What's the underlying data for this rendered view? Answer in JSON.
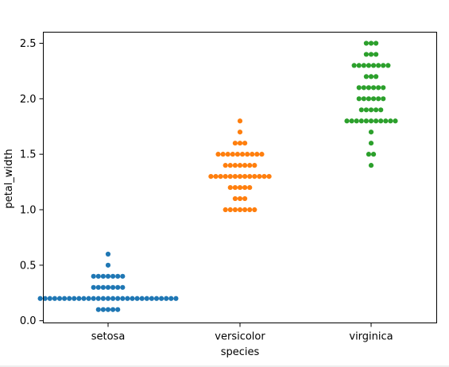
{
  "chart_data": {
    "type": "scatter",
    "subtype": "swarm",
    "title": "",
    "xlabel": "species",
    "ylabel": "petal_width",
    "ylim": [
      -0.02,
      2.6
    ],
    "yticks": [
      0.0,
      0.5,
      1.0,
      1.5,
      2.0,
      2.5
    ],
    "ytick_labels": [
      "0.0",
      "0.5",
      "1.0",
      "1.5",
      "2.0",
      "2.5"
    ],
    "grid": false,
    "legend": "none",
    "categories": [
      "setosa",
      "versicolor",
      "virginica"
    ],
    "colors": [
      "#1f77b4",
      "#ff7f0e",
      "#2ca02c"
    ],
    "series": [
      {
        "values": [
          0.1,
          0.1,
          0.1,
          0.1,
          0.1,
          0.2,
          0.2,
          0.2,
          0.2,
          0.2,
          0.2,
          0.2,
          0.2,
          0.2,
          0.2,
          0.2,
          0.2,
          0.2,
          0.2,
          0.2,
          0.2,
          0.2,
          0.2,
          0.2,
          0.2,
          0.2,
          0.2,
          0.2,
          0.2,
          0.2,
          0.2,
          0.2,
          0.2,
          0.2,
          0.3,
          0.3,
          0.3,
          0.3,
          0.3,
          0.3,
          0.3,
          0.4,
          0.4,
          0.4,
          0.4,
          0.4,
          0.4,
          0.4,
          0.5,
          0.6
        ]
      },
      {
        "values": [
          1.0,
          1.0,
          1.0,
          1.0,
          1.0,
          1.0,
          1.0,
          1.1,
          1.1,
          1.1,
          1.2,
          1.2,
          1.2,
          1.2,
          1.2,
          1.3,
          1.3,
          1.3,
          1.3,
          1.3,
          1.3,
          1.3,
          1.3,
          1.3,
          1.3,
          1.3,
          1.3,
          1.3,
          1.4,
          1.4,
          1.4,
          1.4,
          1.4,
          1.4,
          1.4,
          1.5,
          1.5,
          1.5,
          1.5,
          1.5,
          1.5,
          1.5,
          1.5,
          1.5,
          1.5,
          1.6,
          1.6,
          1.6,
          1.7,
          1.8
        ]
      },
      {
        "values": [
          1.4,
          1.5,
          1.5,
          1.6,
          1.7,
          1.8,
          1.8,
          1.8,
          1.8,
          1.8,
          1.8,
          1.8,
          1.8,
          1.8,
          1.8,
          1.8,
          1.9,
          1.9,
          1.9,
          1.9,
          1.9,
          2.0,
          2.0,
          2.0,
          2.0,
          2.0,
          2.0,
          2.1,
          2.1,
          2.1,
          2.1,
          2.1,
          2.1,
          2.2,
          2.2,
          2.2,
          2.3,
          2.3,
          2.3,
          2.3,
          2.3,
          2.3,
          2.3,
          2.3,
          2.4,
          2.4,
          2.4,
          2.5,
          2.5,
          2.5
        ]
      }
    ]
  }
}
